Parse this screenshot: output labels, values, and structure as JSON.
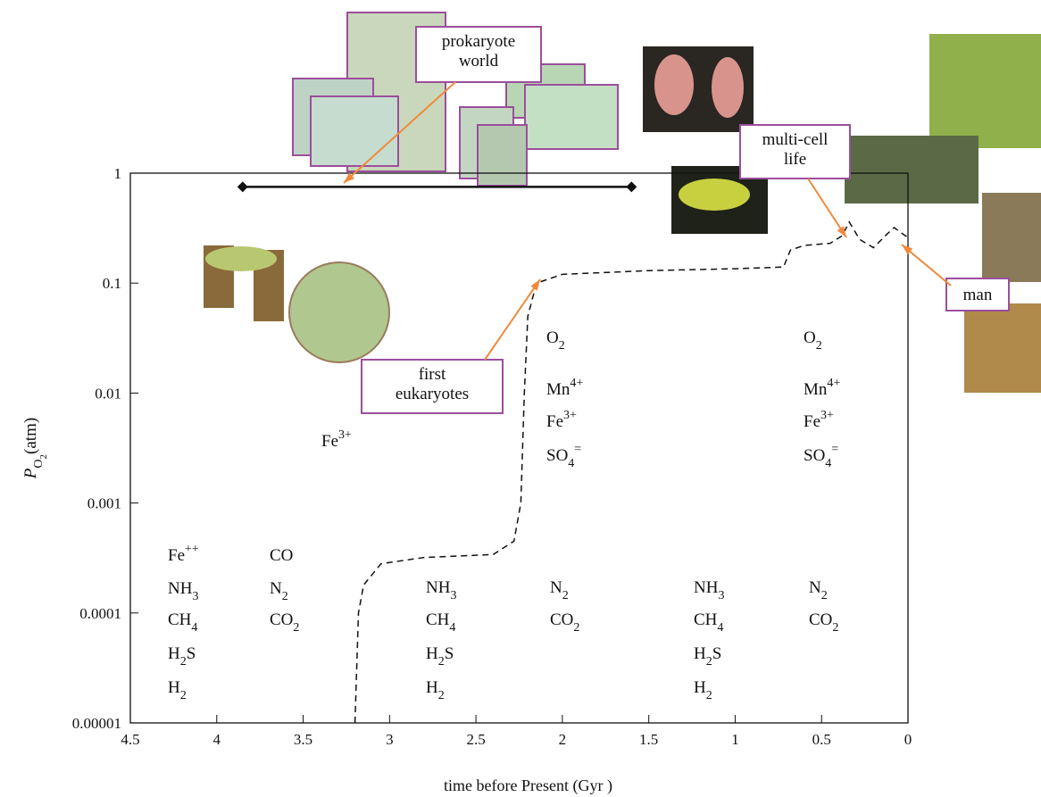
{
  "chart_data": {
    "type": "line",
    "log_scale_y": true,
    "xlim": [
      4.5,
      0
    ],
    "xticks": [
      4.5,
      4,
      3.5,
      3,
      2.5,
      2,
      1.5,
      1,
      0.5,
      0
    ],
    "ylim": [
      1e-05,
      1
    ],
    "yticks": [
      {
        "value": 1e-05,
        "label": "0.00001"
      },
      0.0001,
      0.001,
      0.01,
      0.1,
      1
    ],
    "x_label": "time before Present (Gyr )",
    "y_label": {
      "symbol": "P",
      "sub": "O",
      "subsub": "2",
      "unit": "(atm)"
    },
    "series": [
      {
        "color": "#111111",
        "x": [
          3.2,
          3.18,
          3.15,
          3.05,
          2.8,
          2.4,
          2.28,
          2.24,
          2.22,
          2.2,
          2.15,
          2.0,
          1.5,
          1.0,
          0.72,
          0.68,
          0.6,
          0.45,
          0.38,
          0.34,
          0.28,
          0.2,
          0.12,
          0.08,
          0.03,
          0
        ],
        "values": [
          1e-05,
          0.0001,
          0.00018,
          0.00028,
          0.00032,
          0.00034,
          0.00045,
          0.001,
          0.01,
          0.05,
          0.1,
          0.12,
          0.13,
          0.135,
          0.14,
          0.2,
          0.22,
          0.23,
          0.27,
          0.36,
          0.25,
          0.21,
          0.28,
          0.32,
          0.28,
          0.26
        ]
      }
    ],
    "range": {
      "x": [
        3.85,
        1.6
      ],
      "y": 0.75
    },
    "callouts": [
      {
        "lines": [
          "prokaryote",
          "world"
        ]
      },
      {
        "lines": [
          "first",
          "eukaryotes"
        ]
      },
      {
        "lines": [
          "multi-cell",
          "life"
        ]
      },
      {
        "lines": [
          "man"
        ]
      }
    ],
    "species_groups": [
      [
        {
          "base": "Fe",
          "sup": "++"
        },
        {
          "base": "NH",
          "sub": "3"
        },
        {
          "base": "CH",
          "sub": "4"
        },
        {
          "base": "H",
          "sub": "2",
          "after": "S"
        },
        {
          "base": "H",
          "sub": "2"
        }
      ],
      [
        {
          "base": "CO"
        },
        {
          "base": "N",
          "sub": "2"
        },
        {
          "base": "CO",
          "sub": "2"
        }
      ],
      [
        {
          "base": "Fe",
          "sup": "3+"
        }
      ],
      [
        {
          "base": "NH",
          "sub": "3"
        },
        {
          "base": "CH",
          "sub": "4"
        },
        {
          "base": "H",
          "sub": "2",
          "after": "S"
        },
        {
          "base": "H",
          "sub": "2"
        }
      ],
      [
        {
          "base": "N",
          "sub": "2"
        },
        {
          "base": "CO",
          "sub": "2"
        }
      ],
      [
        {
          "base": "O",
          "sub": "2"
        },
        {
          "base": "Mn",
          "sup": "4+"
        },
        {
          "base": "Fe",
          "sup": "3+"
        },
        {
          "base": "SO",
          "sub": "4",
          "sup": "="
        }
      ],
      [
        {
          "base": "NH",
          "sub": "3"
        },
        {
          "base": "CH",
          "sub": "4"
        },
        {
          "base": "H",
          "sub": "2",
          "after": "S"
        },
        {
          "base": "H",
          "sub": "2"
        }
      ],
      [
        {
          "base": "N",
          "sub": "2"
        },
        {
          "base": "CO",
          "sub": "2"
        }
      ],
      [
        {
          "base": "O",
          "sub": "2"
        },
        {
          "base": "Mn",
          "sup": "4+"
        },
        {
          "base": "Fe",
          "sup": "3+"
        },
        {
          "base": "SO",
          "sub": "4",
          "sup": "="
        }
      ]
    ]
  }
}
